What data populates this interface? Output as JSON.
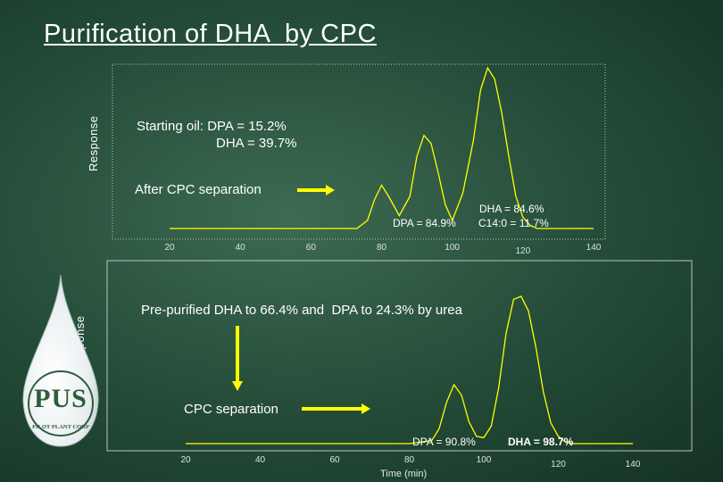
{
  "title": "Purification of DHA  by CPC",
  "chart_data": [
    {
      "type": "line",
      "ylabel": "Response",
      "x_ticks": [
        "20",
        "40",
        "60",
        "80",
        "100",
        "120",
        "140"
      ],
      "notes": {
        "start_line1": "Starting oil: DPA = 15.2%",
        "start_line2": "DHA = 39.7%",
        "after": "After CPC separation",
        "dpa_label": "DPA = 84.9%",
        "dha_label": "DHA = 84.6%",
        "c14_label": "C14:0 = 11.7%"
      },
      "series": [
        {
          "x": [
            20,
            40,
            60,
            65,
            73,
            76,
            78,
            80,
            82,
            85,
            88,
            90,
            92,
            94,
            96,
            98,
            100,
            103,
            106,
            108,
            110,
            112,
            114,
            116,
            118,
            120,
            122,
            124,
            126,
            130,
            140
          ],
          "y": [
            0,
            0,
            0,
            0,
            0,
            0.05,
            0.18,
            0.27,
            0.2,
            0.08,
            0.2,
            0.45,
            0.58,
            0.53,
            0.35,
            0.15,
            0.05,
            0.22,
            0.55,
            0.86,
            1.0,
            0.93,
            0.72,
            0.45,
            0.2,
            0.07,
            0.02,
            0,
            0,
            0,
            0
          ]
        }
      ]
    },
    {
      "type": "line",
      "ylabel": "Response",
      "xlabel": "Time (min)",
      "x_ticks": [
        "20",
        "40",
        "60",
        "80",
        "100",
        "120",
        "140"
      ],
      "notes": {
        "pre": "Pre-purified DHA to 66.4% and  DPA to 24.3% by urea",
        "cpc": "CPC separation",
        "dpa_label": "DPA = 90.8%",
        "dha_label": "DHA = 98.7%"
      },
      "series": [
        {
          "x": [
            20,
            40,
            60,
            80,
            86,
            88,
            90,
            92,
            94,
            96,
            98,
            100,
            102,
            104,
            106,
            108,
            110,
            112,
            114,
            116,
            118,
            120,
            122,
            124,
            126,
            130,
            140
          ],
          "y": [
            0,
            0,
            0,
            0,
            0.02,
            0.1,
            0.28,
            0.4,
            0.33,
            0.15,
            0.05,
            0.04,
            0.12,
            0.38,
            0.75,
            0.98,
            1.0,
            0.9,
            0.65,
            0.35,
            0.14,
            0.05,
            0.01,
            0,
            0,
            0,
            0
          ]
        }
      ]
    }
  ],
  "logo": {
    "letters": "PUS",
    "caption": "PILOT PLANT CORP"
  },
  "colors": {
    "trace": "#ffff00",
    "axis": "#cfcfcf"
  }
}
